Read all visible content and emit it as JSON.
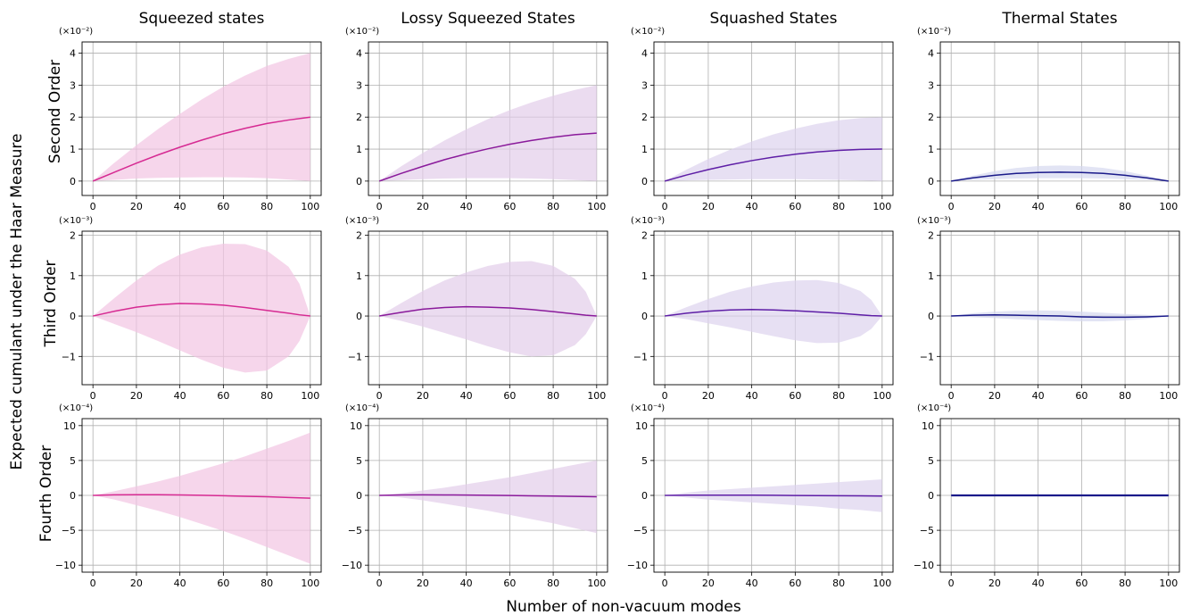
{
  "figure": {
    "suptitle_y": "Expected cumulant under the Haar Measure",
    "suptitle_x": "Number of non-vacuum modes",
    "col_titles": [
      "Squeezed states",
      "Lossy Squeezed States",
      "Squashed States",
      "Thermal States"
    ],
    "row_titles": [
      "Second Order",
      "Third Order",
      "Fourth Order"
    ],
    "row_scales": [
      "(×10⁻²)",
      "(×10⁻³)",
      "(×10⁻⁴)"
    ],
    "x_ticks": [
      0,
      20,
      40,
      60,
      80,
      100
    ],
    "row_yticks": [
      [
        0,
        1,
        2,
        3,
        4
      ],
      [
        -1,
        0,
        1,
        2
      ],
      [
        -10,
        -5,
        0,
        5,
        10
      ]
    ]
  },
  "colors": {
    "squeezed": "#d62a92",
    "lossy": "#8a1a9b",
    "squashed": "#5e1ea6",
    "thermal": "#1a1a8a",
    "band_squeezed": "#f2c4e2",
    "band_lossy": "#e3cdea",
    "band_squashed": "#ddd3ee",
    "band_thermal": "#d6d9ef"
  },
  "chart_data": [
    {
      "type": "line",
      "row": 0,
      "col": 0,
      "title": "Squeezed states",
      "ylabel": "Second Order",
      "xlim": [
        -5,
        105
      ],
      "ylim": [
        -0.45,
        4.35
      ],
      "grid": true,
      "color_key": "squeezed",
      "x": [
        0,
        10,
        20,
        30,
        40,
        50,
        60,
        70,
        80,
        90,
        100
      ],
      "mean": [
        0,
        0.28,
        0.56,
        0.82,
        1.06,
        1.28,
        1.48,
        1.65,
        1.8,
        1.91,
        2.0
      ],
      "upper": [
        0,
        0.58,
        1.12,
        1.63,
        2.1,
        2.55,
        2.95,
        3.3,
        3.6,
        3.82,
        4.0
      ],
      "lower": [
        0,
        0.04,
        0.08,
        0.1,
        0.11,
        0.12,
        0.12,
        0.11,
        0.09,
        0.05,
        0.0
      ]
    },
    {
      "type": "line",
      "row": 0,
      "col": 1,
      "title": "Lossy Squeezed States",
      "ylabel": "",
      "xlim": [
        -5,
        105
      ],
      "ylim": [
        -0.45,
        4.35
      ],
      "grid": true,
      "color_key": "lossy",
      "x": [
        0,
        10,
        20,
        30,
        40,
        50,
        60,
        70,
        80,
        90,
        100
      ],
      "mean": [
        0,
        0.24,
        0.46,
        0.67,
        0.85,
        1.01,
        1.15,
        1.27,
        1.37,
        1.45,
        1.5
      ],
      "upper": [
        0,
        0.46,
        0.88,
        1.27,
        1.62,
        1.94,
        2.22,
        2.46,
        2.67,
        2.85,
        3.0
      ],
      "lower": [
        0,
        0.03,
        0.06,
        0.08,
        0.09,
        0.09,
        0.09,
        0.08,
        0.06,
        0.03,
        0.0
      ]
    },
    {
      "type": "line",
      "row": 0,
      "col": 2,
      "title": "Squashed States",
      "ylabel": "",
      "xlim": [
        -5,
        105
      ],
      "ylim": [
        -0.45,
        4.35
      ],
      "grid": true,
      "color_key": "squashed",
      "x": [
        0,
        10,
        20,
        30,
        40,
        50,
        60,
        70,
        80,
        90,
        100
      ],
      "mean": [
        0,
        0.19,
        0.36,
        0.51,
        0.64,
        0.75,
        0.84,
        0.91,
        0.96,
        0.99,
        1.0
      ],
      "upper": [
        0,
        0.36,
        0.69,
        0.98,
        1.24,
        1.46,
        1.64,
        1.79,
        1.9,
        1.97,
        2.0
      ],
      "lower": [
        0,
        0.02,
        0.04,
        0.05,
        0.06,
        0.06,
        0.06,
        0.05,
        0.04,
        0.02,
        0.0
      ]
    },
    {
      "type": "line",
      "row": 0,
      "col": 3,
      "title": "Thermal States",
      "ylabel": "",
      "xlim": [
        -5,
        105
      ],
      "ylim": [
        -0.45,
        4.35
      ],
      "grid": true,
      "color_key": "thermal",
      "x": [
        0,
        10,
        20,
        30,
        40,
        50,
        60,
        70,
        80,
        90,
        100
      ],
      "mean": [
        0,
        0.1,
        0.18,
        0.24,
        0.27,
        0.28,
        0.27,
        0.24,
        0.18,
        0.1,
        0.0
      ],
      "upper": [
        0,
        0.17,
        0.31,
        0.41,
        0.47,
        0.49,
        0.47,
        0.41,
        0.31,
        0.17,
        0.0
      ],
      "lower": [
        0,
        0.04,
        0.06,
        0.08,
        0.09,
        0.09,
        0.09,
        0.08,
        0.06,
        0.04,
        0.0
      ]
    },
    {
      "type": "line",
      "row": 1,
      "col": 0,
      "title": "",
      "ylabel": "Third Order",
      "xlim": [
        -5,
        105
      ],
      "ylim": [
        -1.7,
        2.1
      ],
      "grid": true,
      "color_key": "squeezed",
      "x": [
        0,
        10,
        20,
        30,
        40,
        50,
        60,
        70,
        80,
        90,
        95,
        100
      ],
      "mean": [
        0,
        0.12,
        0.22,
        0.28,
        0.31,
        0.3,
        0.27,
        0.21,
        0.14,
        0.07,
        0.03,
        0.0
      ],
      "upper": [
        0,
        0.45,
        0.88,
        1.25,
        1.52,
        1.7,
        1.79,
        1.78,
        1.62,
        1.22,
        0.8,
        0.0
      ],
      "lower": [
        0,
        -0.2,
        -0.4,
        -0.62,
        -0.85,
        -1.08,
        -1.28,
        -1.4,
        -1.35,
        -1.0,
        -0.62,
        0.0
      ]
    },
    {
      "type": "line",
      "row": 1,
      "col": 1,
      "title": "",
      "ylabel": "",
      "xlim": [
        -5,
        105
      ],
      "ylim": [
        -1.7,
        2.1
      ],
      "grid": true,
      "color_key": "lossy",
      "x": [
        0,
        10,
        20,
        30,
        40,
        50,
        60,
        70,
        80,
        90,
        95,
        100
      ],
      "mean": [
        0,
        0.09,
        0.17,
        0.21,
        0.23,
        0.22,
        0.2,
        0.16,
        0.11,
        0.05,
        0.02,
        0.0
      ],
      "upper": [
        0,
        0.32,
        0.62,
        0.88,
        1.08,
        1.24,
        1.34,
        1.36,
        1.24,
        0.92,
        0.6,
        0.0
      ],
      "lower": [
        0,
        -0.12,
        -0.26,
        -0.42,
        -0.58,
        -0.75,
        -0.9,
        -1.0,
        -0.97,
        -0.72,
        -0.45,
        0.0
      ]
    },
    {
      "type": "line",
      "row": 1,
      "col": 2,
      "title": "",
      "ylabel": "",
      "xlim": [
        -5,
        105
      ],
      "ylim": [
        -1.7,
        2.1
      ],
      "grid": true,
      "color_key": "squashed",
      "x": [
        0,
        10,
        20,
        30,
        40,
        50,
        60,
        70,
        80,
        90,
        95,
        100
      ],
      "mean": [
        0,
        0.07,
        0.12,
        0.15,
        0.16,
        0.15,
        0.13,
        0.1,
        0.07,
        0.03,
        0.01,
        0.0
      ],
      "upper": [
        0,
        0.22,
        0.42,
        0.6,
        0.73,
        0.83,
        0.88,
        0.89,
        0.82,
        0.62,
        0.4,
        0.0
      ],
      "lower": [
        0,
        -0.08,
        -0.18,
        -0.28,
        -0.39,
        -0.5,
        -0.6,
        -0.67,
        -0.66,
        -0.5,
        -0.32,
        0.0
      ]
    },
    {
      "type": "line",
      "row": 1,
      "col": 3,
      "title": "",
      "ylabel": "",
      "xlim": [
        -5,
        105
      ],
      "ylim": [
        -1.7,
        2.1
      ],
      "grid": true,
      "color_key": "thermal",
      "x": [
        0,
        10,
        20,
        30,
        40,
        50,
        60,
        70,
        80,
        90,
        100
      ],
      "mean": [
        0,
        0.02,
        0.03,
        0.02,
        0.01,
        0.0,
        -0.02,
        -0.03,
        -0.03,
        -0.02,
        0.0
      ],
      "upper": [
        0,
        0.07,
        0.11,
        0.13,
        0.14,
        0.13,
        0.11,
        0.08,
        0.05,
        0.03,
        0.0
      ],
      "lower": [
        0,
        -0.03,
        -0.05,
        -0.08,
        -0.1,
        -0.12,
        -0.13,
        -0.13,
        -0.11,
        -0.07,
        0.0
      ]
    },
    {
      "type": "line",
      "row": 2,
      "col": 0,
      "title": "",
      "ylabel": "Fourth Order",
      "xlim": [
        -5,
        105
      ],
      "ylim": [
        -11,
        11
      ],
      "grid": true,
      "color_key": "squeezed",
      "x": [
        0,
        10,
        20,
        30,
        40,
        50,
        60,
        70,
        80,
        90,
        100
      ],
      "mean": [
        0,
        0.08,
        0.1,
        0.1,
        0.07,
        0.02,
        -0.05,
        -0.12,
        -0.2,
        -0.3,
        -0.4
      ],
      "upper": [
        0,
        0.6,
        1.3,
        2.0,
        2.8,
        3.7,
        4.6,
        5.6,
        6.7,
        7.8,
        9.0
      ],
      "lower": [
        0,
        -0.6,
        -1.4,
        -2.2,
        -3.1,
        -4.1,
        -5.1,
        -6.2,
        -7.4,
        -8.6,
        -9.8
      ]
    },
    {
      "type": "line",
      "row": 2,
      "col": 1,
      "title": "",
      "ylabel": "",
      "xlim": [
        -5,
        105
      ],
      "ylim": [
        -11,
        11
      ],
      "grid": true,
      "color_key": "lossy",
      "x": [
        0,
        10,
        20,
        30,
        40,
        50,
        60,
        70,
        80,
        90,
        100
      ],
      "mean": [
        0,
        0.06,
        0.08,
        0.07,
        0.05,
        0.02,
        -0.02,
        -0.06,
        -0.1,
        -0.15,
        -0.2
      ],
      "upper": [
        0,
        0.3,
        0.7,
        1.1,
        1.6,
        2.1,
        2.6,
        3.2,
        3.8,
        4.4,
        5.0
      ],
      "lower": [
        0,
        -0.3,
        -0.7,
        -1.2,
        -1.7,
        -2.2,
        -2.8,
        -3.4,
        -4.0,
        -4.7,
        -5.4
      ]
    },
    {
      "type": "line",
      "row": 2,
      "col": 2,
      "title": "",
      "ylabel": "",
      "xlim": [
        -5,
        105
      ],
      "ylim": [
        -11,
        11
      ],
      "grid": true,
      "color_key": "squashed",
      "x": [
        0,
        10,
        20,
        30,
        40,
        50,
        60,
        70,
        80,
        90,
        100
      ],
      "mean": [
        0,
        0.03,
        0.04,
        0.04,
        0.03,
        0.01,
        -0.01,
        -0.03,
        -0.05,
        -0.07,
        -0.1
      ],
      "upper": [
        0,
        0.4,
        0.7,
        0.9,
        1.1,
        1.3,
        1.5,
        1.7,
        1.9,
        2.1,
        2.3
      ],
      "lower": [
        0,
        -0.3,
        -0.6,
        -0.8,
        -1.0,
        -1.2,
        -1.4,
        -1.6,
        -1.9,
        -2.1,
        -2.4
      ]
    },
    {
      "type": "line",
      "row": 2,
      "col": 3,
      "title": "",
      "ylabel": "",
      "xlim": [
        -5,
        105
      ],
      "ylim": [
        -11,
        11
      ],
      "grid": true,
      "color_key": "thermal",
      "x": [
        0,
        20,
        40,
        60,
        80,
        100
      ],
      "mean": [
        0,
        0,
        0,
        0,
        0,
        0
      ],
      "upper": [
        0.12,
        0.12,
        0.12,
        0.12,
        0.12,
        0.12
      ],
      "lower": [
        -0.12,
        -0.12,
        -0.12,
        -0.12,
        -0.12,
        -0.12
      ]
    }
  ]
}
